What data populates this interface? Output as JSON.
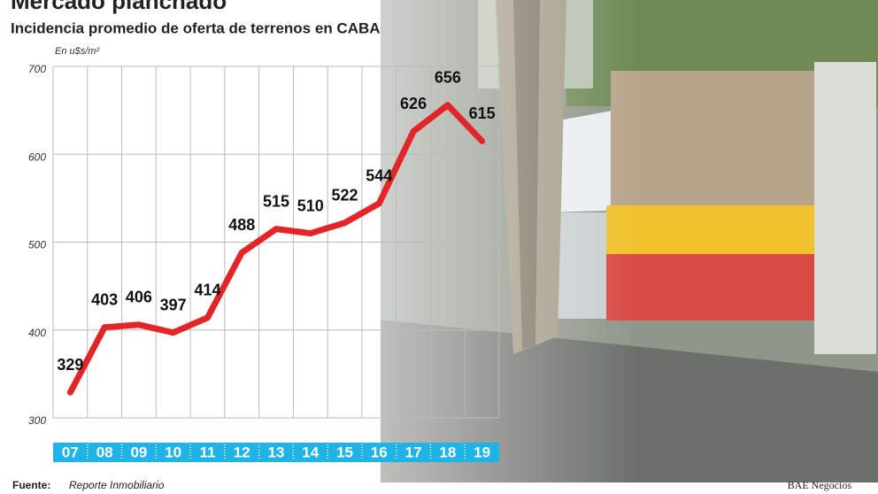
{
  "chart_data": {
    "type": "line",
    "title": "Mercado planchado",
    "subtitle": "Incidencia promedio de oferta de terrenos en CABA",
    "y_label": "En u$s/m²",
    "categories": [
      "07",
      "08",
      "09",
      "10",
      "11",
      "12",
      "13",
      "14",
      "15",
      "16",
      "17",
      "18",
      "19"
    ],
    "values": [
      329,
      403,
      406,
      397,
      414,
      488,
      515,
      510,
      522,
      544,
      626,
      656,
      615
    ],
    "color": "#e42528",
    "ylim": [
      300,
      700
    ],
    "yticks": [
      300,
      400,
      500,
      600,
      700
    ],
    "grid": true,
    "source_label": "Fuente:",
    "source": "Reporte Inmobiliario",
    "credit": "BAE Negocios"
  }
}
